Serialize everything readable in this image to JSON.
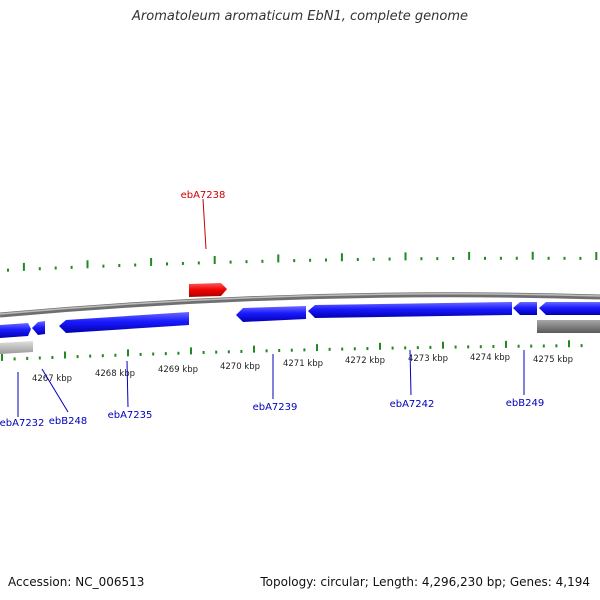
{
  "header": {
    "title": "Aromatoleum aromaticum EbN1, complete genome"
  },
  "colors": {
    "forward_gene": "#dd0000",
    "reverse_gene": "#0000ee",
    "other_feature": "#999999",
    "backbone": "#7a7a7a",
    "ticks": "#228822",
    "label_forward": "#cc0000",
    "label_reverse": "#0000bb"
  },
  "scale": {
    "unit": "kbp",
    "ticks": [
      {
        "label": "4267 kbp"
      },
      {
        "label": "4268 kbp"
      },
      {
        "label": "4269 kbp"
      },
      {
        "label": "4270 kbp"
      },
      {
        "label": "4271 kbp"
      },
      {
        "label": "4272 kbp"
      },
      {
        "label": "4273 kbp"
      },
      {
        "label": "4274 kbp"
      },
      {
        "label": "4275 kbp"
      }
    ]
  },
  "features": [
    {
      "name": "ebA7238",
      "strand": "forward"
    },
    {
      "name": "ebA7232",
      "strand": "reverse"
    },
    {
      "name": "ebB248",
      "strand": "reverse"
    },
    {
      "name": "ebA7235",
      "strand": "reverse"
    },
    {
      "name": "ebA7239",
      "strand": "reverse"
    },
    {
      "name": "ebA7242",
      "strand": "reverse"
    },
    {
      "name": "ebB249",
      "strand": "reverse"
    }
  ],
  "footer": {
    "accession": "Accession: NC_006513",
    "summary": "Topology: circular; Length: 4,296,230 bp; Genes: 4,194"
  }
}
